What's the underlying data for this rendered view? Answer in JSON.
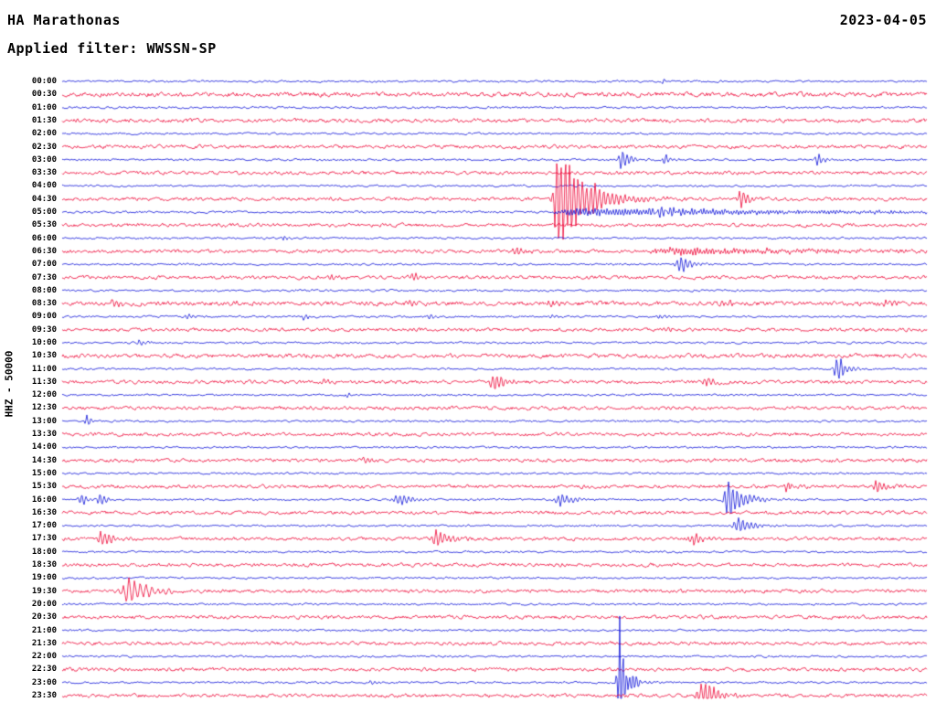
{
  "header": {
    "station_title": "HA Marathonas",
    "date": "2023-04-05",
    "filter_label": "Applied filter: WWSSN-SP"
  },
  "axis": {
    "left_label": "HHZ - 50000"
  },
  "chart_data": {
    "type": "line",
    "subtype": "helicorder-seismogram-dayplot",
    "title": "HA Marathonas",
    "date": "2023-04-05",
    "filter": "WWSSN-SP",
    "channel": "HHZ",
    "scale": 50000,
    "row_interval_minutes": 30,
    "time_start": "00:00",
    "time_end": "24:00",
    "grid": false,
    "legend": false,
    "colors": {
      "background": "#ffffff",
      "text": "#000000",
      "trace_blue": "#0b10d8",
      "trace_red": "#ee0033"
    },
    "row_labels": [
      "00:00",
      "00:30",
      "01:00",
      "01:30",
      "02:00",
      "02:30",
      "03:00",
      "03:30",
      "04:00",
      "04:30",
      "05:00",
      "05:30",
      "06:00",
      "06:30",
      "07:00",
      "07:30",
      "08:00",
      "08:30",
      "09:00",
      "09:30",
      "10:00",
      "10:30",
      "11:00",
      "11:30",
      "12:00",
      "12:30",
      "13:00",
      "13:30",
      "14:00",
      "14:30",
      "15:00",
      "15:30",
      "16:00",
      "16:30",
      "17:00",
      "17:30",
      "18:00",
      "18:30",
      "19:00",
      "19:30",
      "20:00",
      "20:30",
      "21:00",
      "21:30",
      "22:00",
      "22:30",
      "23:00",
      "23:30"
    ],
    "color_pattern": [
      "blue",
      "red"
    ],
    "noise": {
      "blue_amp": 0.9,
      "red_amp": 1.55,
      "row_overrides": {
        "00:30": 2.0,
        "01:30": 1.7,
        "02:30": 1.6,
        "08:30": 1.9,
        "10:30": 1.8,
        "11:30": 1.6,
        "05:00": 1.0
      }
    },
    "events": [
      {
        "row": "00:00",
        "pos": 0.695,
        "amp": 2.5,
        "rise": 2,
        "decay": 5
      },
      {
        "row": "03:00",
        "pos": 0.647,
        "amp": 13,
        "rise": 2,
        "decay": 9
      },
      {
        "row": "03:00",
        "pos": 0.697,
        "amp": 7,
        "rise": 2,
        "decay": 7
      },
      {
        "row": "03:00",
        "pos": 0.874,
        "amp": 8,
        "rise": 2,
        "decay": 7
      },
      {
        "row": "04:30",
        "pos": 0.573,
        "amp": 65,
        "rise": 3,
        "decay": 30
      },
      {
        "row": "04:30",
        "pos": 0.784,
        "amp": 12,
        "rise": 2,
        "decay": 9
      },
      {
        "row": "05:00",
        "pos": 0.6,
        "amp": 4.5,
        "rise": 18,
        "decay": 300,
        "freq": 1.9
      },
      {
        "row": "05:00",
        "pos": 0.69,
        "amp": 6,
        "rise": 6,
        "decay": 25
      },
      {
        "row": "06:00",
        "pos": 0.256,
        "amp": 4,
        "rise": 1,
        "decay": 3
      },
      {
        "row": "06:30",
        "pos": 0.525,
        "amp": 6,
        "rise": 3,
        "decay": 10
      },
      {
        "row": "06:30",
        "pos": 0.72,
        "amp": 4,
        "rise": 25,
        "decay": 150,
        "freq": 1.9
      },
      {
        "row": "07:00",
        "pos": 0.716,
        "amp": 10,
        "rise": 4,
        "decay": 12
      },
      {
        "row": "07:30",
        "pos": 0.312,
        "amp": 4,
        "rise": 2,
        "decay": 7
      },
      {
        "row": "07:30",
        "pos": 0.405,
        "amp": 6,
        "rise": 3,
        "decay": 9
      },
      {
        "row": "08:30",
        "pos": 0.06,
        "amp": 5,
        "rise": 3,
        "decay": 8
      },
      {
        "row": "08:30",
        "pos": 0.2,
        "amp": 3,
        "rise": 3,
        "decay": 8
      },
      {
        "row": "08:30",
        "pos": 0.4,
        "amp": 4,
        "rise": 3,
        "decay": 8
      },
      {
        "row": "08:30",
        "pos": 0.565,
        "amp": 4,
        "rise": 3,
        "decay": 8
      },
      {
        "row": "08:30",
        "pos": 0.765,
        "amp": 4,
        "rise": 3,
        "decay": 8
      },
      {
        "row": "08:30",
        "pos": 0.95,
        "amp": 5,
        "rise": 3,
        "decay": 8
      },
      {
        "row": "09:00",
        "pos": 0.145,
        "amp": 4,
        "rise": 2,
        "decay": 7
      },
      {
        "row": "09:00",
        "pos": 0.28,
        "amp": 4,
        "rise": 2,
        "decay": 7
      },
      {
        "row": "09:00",
        "pos": 0.425,
        "amp": 4,
        "rise": 2,
        "decay": 7
      },
      {
        "row": "09:00",
        "pos": 0.565,
        "amp": 3,
        "rise": 2,
        "decay": 7
      },
      {
        "row": "09:00",
        "pos": 0.69,
        "amp": 3,
        "rise": 2,
        "decay": 7
      },
      {
        "row": "09:30",
        "pos": 0.695,
        "amp": 4,
        "rise": 3,
        "decay": 8
      },
      {
        "row": "10:00",
        "pos": 0.089,
        "amp": 4,
        "rise": 2,
        "decay": 6
      },
      {
        "row": "11:00",
        "pos": 0.897,
        "amp": 16,
        "rise": 3,
        "decay": 10
      },
      {
        "row": "11:30",
        "pos": 0.3,
        "amp": 3,
        "rise": 2,
        "decay": 6
      },
      {
        "row": "11:30",
        "pos": 0.5,
        "amp": 12,
        "rise": 4,
        "decay": 12
      },
      {
        "row": "11:30",
        "pos": 0.745,
        "amp": 6,
        "rise": 3,
        "decay": 8
      },
      {
        "row": "12:00",
        "pos": 0.33,
        "amp": 4,
        "rise": 1,
        "decay": 4
      },
      {
        "row": "13:00",
        "pos": 0.028,
        "amp": 8,
        "rise": 1,
        "decay": 5
      },
      {
        "row": "14:30",
        "pos": 0.35,
        "amp": 3,
        "rise": 4,
        "decay": 9
      },
      {
        "row": "15:30",
        "pos": 0.838,
        "amp": 6,
        "rise": 2,
        "decay": 7
      },
      {
        "row": "15:30",
        "pos": 0.944,
        "amp": 8,
        "rise": 4,
        "decay": 10
      },
      {
        "row": "16:00",
        "pos": 0.022,
        "amp": 9,
        "rise": 2,
        "decay": 6
      },
      {
        "row": "16:00",
        "pos": 0.043,
        "amp": 10,
        "rise": 2,
        "decay": 7
      },
      {
        "row": "16:00",
        "pos": 0.39,
        "amp": 8,
        "rise": 4,
        "decay": 12
      },
      {
        "row": "16:00",
        "pos": 0.578,
        "amp": 8,
        "rise": 5,
        "decay": 12
      },
      {
        "row": "16:00",
        "pos": 0.77,
        "amp": 26,
        "rise": 3,
        "decay": 16
      },
      {
        "row": "17:00",
        "pos": 0.783,
        "amp": 13,
        "rise": 4,
        "decay": 12
      },
      {
        "row": "17:30",
        "pos": 0.046,
        "amp": 10,
        "rise": 3,
        "decay": 12
      },
      {
        "row": "17:30",
        "pos": 0.434,
        "amp": 9,
        "rise": 5,
        "decay": 14
      },
      {
        "row": "17:30",
        "pos": 0.73,
        "amp": 9,
        "rise": 3,
        "decay": 9
      },
      {
        "row": "18:30",
        "pos": 0.577,
        "amp": 3,
        "rise": 2,
        "decay": 6
      },
      {
        "row": "19:30",
        "pos": 0.077,
        "amp": 18,
        "rise": 5,
        "decay": 20,
        "freq": 1.0
      },
      {
        "row": "23:00",
        "pos": 0.357,
        "amp": 4,
        "rise": 1,
        "decay": 4
      },
      {
        "row": "23:00",
        "pos": 0.645,
        "amp": 78,
        "rise": 2,
        "decay": 6,
        "freq": 1.7
      },
      {
        "row": "23:00",
        "pos": 0.65,
        "amp": 10,
        "rise": 4,
        "decay": 14
      },
      {
        "row": "23:30",
        "pos": 0.745,
        "amp": 22,
        "rise": 6,
        "decay": 12
      }
    ]
  }
}
